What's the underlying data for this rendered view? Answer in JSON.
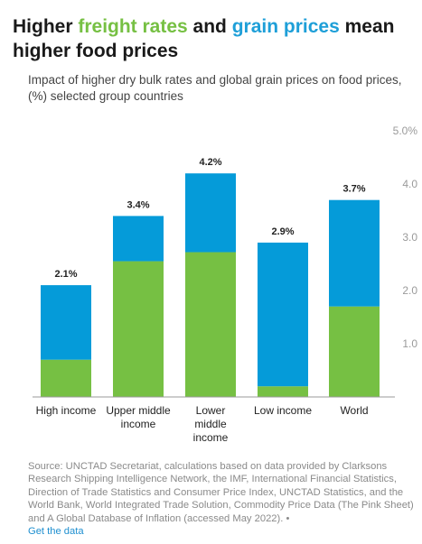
{
  "title": {
    "part1": "Higher ",
    "freight": "freight rates",
    "part2": " and ",
    "grain": "grain prices",
    "part3": " mean higher food prices"
  },
  "subtitle": "Impact of higher dry bulk rates and global grain prices on food prices, (%) selected group countries",
  "source_text": "Source: UNCTAD Secretariat, calculations based on data provided by Clarksons Research Shipping Intelligence Network, the IMF, International Financial Statistics, Direction of Trade Statistics and Consumer Price Index, UNCTAD Statistics, and the World Bank, World Integrated Trade Solution, Commodity Price Data (The Pink Sheet) and A Global Database of Inflation (accessed May 2022). •",
  "source_link": "Get the data",
  "colors": {
    "freight": "#76c043",
    "grain": "#059bd9",
    "axis": "#a0a0a0",
    "text": "#333333"
  },
  "chart_data": {
    "type": "bar",
    "stacked": true,
    "categories": [
      [
        "High income"
      ],
      [
        "Upper middle",
        "income"
      ],
      [
        "Lower",
        "middle",
        "income"
      ],
      [
        "Low income"
      ],
      [
        "World"
      ]
    ],
    "series": [
      {
        "name": "freight rates",
        "color": "#76c043",
        "values": [
          0.7,
          2.55,
          2.72,
          0.2,
          1.7
        ]
      },
      {
        "name": "grain prices",
        "color": "#059bd9",
        "values": [
          1.4,
          0.85,
          1.48,
          2.7,
          2.0
        ]
      }
    ],
    "totals": [
      2.1,
      3.4,
      4.2,
      2.9,
      3.7
    ],
    "total_labels": [
      "2.1%",
      "3.4%",
      "4.2%",
      "2.9%",
      "3.7%"
    ],
    "yticks": [
      {
        "value": 1,
        "label": "1.0"
      },
      {
        "value": 2,
        "label": "2.0"
      },
      {
        "value": 3,
        "label": "3.0"
      },
      {
        "value": 4,
        "label": "4.0"
      },
      {
        "value": 5,
        "label": "5.0%"
      }
    ],
    "ylim": [
      0,
      5
    ],
    "grid": false,
    "axis_position": "right"
  }
}
